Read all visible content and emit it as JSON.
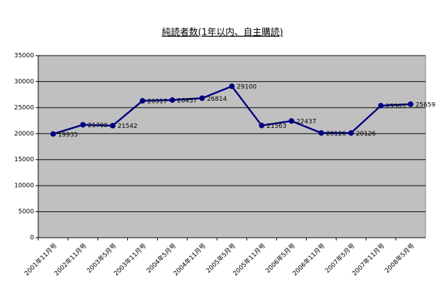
{
  "chart_data": {
    "type": "line",
    "title": "純読者数(1年以内、自主購読)",
    "categories": [
      "2001年11月号",
      "2002年11月号",
      "2003年5月号",
      "2003年11月号",
      "2004年5月号",
      "2004年11月号",
      "2005年5月号",
      "2005年11月号",
      "2006年5月号",
      "2006年11月号",
      "2007年5月号",
      "2007年11月号",
      "2008年5月号"
    ],
    "values": [
      19935,
      21700,
      21542,
      26317,
      26457,
      26814,
      29100,
      21563,
      22437,
      20126,
      20126,
      25363,
      25659
    ],
    "color": "#000080",
    "plot_background": "#c0c0c0",
    "ylim": [
      0,
      35000
    ],
    "yticks": [
      0,
      5000,
      10000,
      15000,
      20000,
      25000,
      30000,
      35000
    ],
    "grid": true
  }
}
